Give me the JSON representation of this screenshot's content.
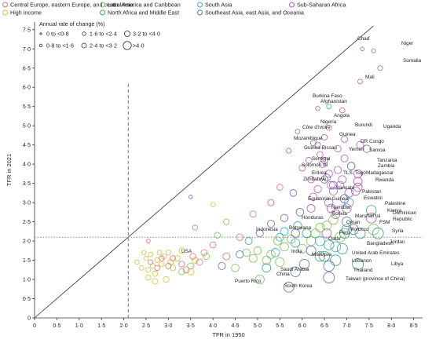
{
  "chart_data": {
    "type": "scatter",
    "xlabel": "TFR in 1950",
    "ylabel": "TFR in 2021",
    "xlim": [
      0,
      8.7
    ],
    "ylim": [
      0,
      7.7
    ],
    "x_ticks": [
      "0",
      "0·5",
      "1·0",
      "1·5",
      "2·0",
      "2·5",
      "3·0",
      "3·5",
      "4·0",
      "4·5",
      "5·0",
      "5·5",
      "6·0",
      "6·5",
      "7·0",
      "7·5",
      "8·0",
      "8·5"
    ],
    "y_ticks": [
      "0",
      "0·5",
      "1·0",
      "1·5",
      "2·0",
      "2·5",
      "3·0",
      "3·5",
      "4·0",
      "4·5",
      "5·0",
      "5·5",
      "6·0",
      "6·5",
      "7·0",
      "7·5"
    ],
    "reference_lines": [
      {
        "kind": "diagonal",
        "from": [
          0,
          0
        ],
        "to": [
          7.6,
          7.6
        ]
      },
      {
        "kind": "vertical-dashed",
        "x": 2.1
      },
      {
        "kind": "horizontal-dotted",
        "y": 2.1
      }
    ],
    "legend": {
      "regions": [
        {
          "name": "Central Europe, eastern Europe, and central Asia",
          "color": "#e8717d"
        },
        {
          "name": "High income",
          "color": "#d4c43c"
        },
        {
          "name": "Latin America and Caribbean",
          "color": "#7cc55a"
        },
        {
          "name": "North Africa and Middle East",
          "color": "#3aa37a"
        },
        {
          "name": "South Asia",
          "color": "#35b3c8"
        },
        {
          "name": "Southeast Asia, east Asia, and Oceania",
          "color": "#5a6fc0"
        },
        {
          "name": "Sub-Saharan Africa",
          "color": "#b060b8"
        }
      ],
      "size_title": "Annual rate of change (%)",
      "size_bins": [
        "0 to <0·8",
        "1·6 to <2·4",
        "3·2 to <4·0",
        "0·8 to <1·6",
        "2·4 to <3·2",
        ">4·0"
      ]
    },
    "labelled_points": [
      {
        "name": "Chad",
        "x": 7.35,
        "y": 7.0,
        "region": "Sub-Saharan Africa"
      },
      {
        "name": "Niger",
        "x": 7.6,
        "y": 6.95,
        "region": "Sub-Saharan Africa"
      },
      {
        "name": "Somalia",
        "x": 7.75,
        "y": 6.5,
        "region": "Sub-Saharan Africa"
      },
      {
        "name": "Mali",
        "x": 7.3,
        "y": 6.15,
        "region": "Sub-Saharan Africa"
      },
      {
        "name": "Burkina Faso",
        "x": 6.35,
        "y": 5.45,
        "region": "Sub-Saharan Africa"
      },
      {
        "name": "Afghanistan",
        "x": 6.6,
        "y": 5.5,
        "region": "South Asia"
      },
      {
        "name": "Angola",
        "x": 6.6,
        "y": 4.95,
        "region": "Sub-Saharan Africa"
      },
      {
        "name": "Nigeria",
        "x": 6.5,
        "y": 4.7,
        "region": "Sub-Saharan Africa"
      },
      {
        "name": "Burundi",
        "x": 6.95,
        "y": 4.65,
        "region": "Sub-Saharan Africa"
      },
      {
        "name": "Côte d'Ivoire",
        "x": 6.35,
        "y": 4.5,
        "region": "Sub-Saharan Africa"
      },
      {
        "name": "Uganda",
        "x": 7.3,
        "y": 4.5,
        "region": "Sub-Saharan Africa"
      },
      {
        "name": "Guinea",
        "x": 6.8,
        "y": 4.4,
        "region": "Sub-Saharan Africa"
      },
      {
        "name": "Mozambique",
        "x": 6.4,
        "y": 4.25,
        "region": "Sub-Saharan Africa"
      },
      {
        "name": "DR Congo",
        "x": 6.95,
        "y": 4.15,
        "region": "Sub-Saharan Africa"
      },
      {
        "name": "Guinea-Bissau",
        "x": 6.45,
        "y": 4.0,
        "region": "Sub-Saharan Africa"
      },
      {
        "name": "Yemen",
        "x": 7.1,
        "y": 3.95,
        "region": "North Africa and Middle East"
      },
      {
        "name": "Samoa",
        "x": 7.1,
        "y": 3.95,
        "region": "Southeast Asia, east Asia, and Oceania"
      },
      {
        "name": "Senegal",
        "x": 6.6,
        "y": 3.75,
        "region": "Sub-Saharan Africa"
      },
      {
        "name": "Tanzania",
        "x": 7.25,
        "y": 3.75,
        "region": "Sub-Saharan Africa"
      },
      {
        "name": "Solomon Isl",
        "x": 6.5,
        "y": 3.6,
        "region": "Southeast Asia, east Asia, and Oceania"
      },
      {
        "name": "Zambia",
        "x": 7.25,
        "y": 3.55,
        "region": "Sub-Saharan Africa"
      },
      {
        "name": "Eritrea",
        "x": 6.65,
        "y": 3.45,
        "region": "Sub-Saharan Africa"
      },
      {
        "name": "TLS",
        "x": 6.7,
        "y": 3.45,
        "region": "Southeast Asia, east Asia, and Oceania"
      },
      {
        "name": "Togo",
        "x": 6.85,
        "y": 3.45,
        "region": "Sub-Saharan Africa"
      },
      {
        "name": "Madagascar",
        "x": 7.25,
        "y": 3.4,
        "region": "Sub-Saharan Africa"
      },
      {
        "name": "Zimbabwe",
        "x": 6.7,
        "y": 3.3,
        "region": "Sub-Saharan Africa"
      },
      {
        "name": "Rwanda",
        "x": 7.2,
        "y": 3.3,
        "region": "Sub-Saharan Africa"
      },
      {
        "name": "Vanuatu",
        "x": 6.95,
        "y": 3.1,
        "region": "Southeast Asia, east Asia, and Oceania"
      },
      {
        "name": "Pakistan",
        "x": 7.05,
        "y": 3.0,
        "region": "South Asia"
      },
      {
        "name": "Equatorial Guinea",
        "x": 6.65,
        "y": 2.85,
        "region": "Sub-Saharan Africa"
      },
      {
        "name": "Eswatini",
        "x": 7.0,
        "y": 2.85,
        "region": "Sub-Saharan Africa"
      },
      {
        "name": "Palestine",
        "x": 7.55,
        "y": 2.8,
        "region": "North Africa and Middle East"
      },
      {
        "name": "Namibia",
        "x": 6.75,
        "y": 2.7,
        "region": "Sub-Saharan Africa"
      },
      {
        "name": "Kenya",
        "x": 7.55,
        "y": 2.6,
        "region": "Sub-Saharan Africa"
      },
      {
        "name": "Bolivia",
        "x": 6.7,
        "y": 2.55,
        "region": "Latin America and Caribbean"
      },
      {
        "name": "Marshall Isl",
        "x": 7.0,
        "y": 2.5,
        "region": "Southeast Asia, east Asia, and Oceania"
      },
      {
        "name": "Dominican Republic",
        "x": 7.6,
        "y": 2.3,
        "region": "Latin America and Caribbean"
      },
      {
        "name": "Honduras",
        "x": 6.55,
        "y": 2.4,
        "region": "Latin America and Caribbean"
      },
      {
        "name": "Oman",
        "x": 7.0,
        "y": 2.3,
        "region": "North Africa and Middle East"
      },
      {
        "name": "FSM",
        "x": 7.15,
        "y": 2.3,
        "region": "Southeast Asia, east Asia, and Oceania"
      },
      {
        "name": "Indonesia",
        "x": 5.85,
        "y": 2.2,
        "region": "Southeast Asia, east Asia, and Oceania"
      },
      {
        "name": "Botswana",
        "x": 6.55,
        "y": 2.2,
        "region": "Sub-Saharan Africa"
      },
      {
        "name": "Morocco",
        "x": 6.95,
        "y": 2.2,
        "region": "North Africa and Middle East"
      },
      {
        "name": "Syria",
        "x": 7.3,
        "y": 2.2,
        "region": "North Africa and Middle East"
      },
      {
        "name": "Peru",
        "x": 6.85,
        "y": 2.1,
        "region": "Latin America and Caribbean"
      },
      {
        "name": "Jordan",
        "x": 7.7,
        "y": 2.2,
        "region": "North Africa and Middle East"
      },
      {
        "name": "Qatar",
        "x": 6.6,
        "y": 1.9,
        "region": "North Africa and Middle East"
      },
      {
        "name": "Bangladesh",
        "x": 6.75,
        "y": 1.85,
        "region": "South Asia"
      },
      {
        "name": "India",
        "x": 5.85,
        "y": 1.95,
        "region": "South Asia"
      },
      {
        "name": "United Arab Emirates",
        "x": 6.9,
        "y": 1.8,
        "region": "North Africa and Middle East"
      },
      {
        "name": "Malaysia",
        "x": 6.2,
        "y": 1.75,
        "region": "Southeast Asia, east Asia, and Oceania"
      },
      {
        "name": "Lebanon",
        "x": 6.75,
        "y": 1.5,
        "region": "North Africa and Middle East"
      },
      {
        "name": "Libya",
        "x": 7.25,
        "y": 1.4,
        "region": "North Africa and Middle East"
      },
      {
        "name": "Saudi Arabia",
        "x": 6.5,
        "y": 1.6,
        "region": "North Africa and Middle East"
      },
      {
        "name": "Thailand",
        "x": 6.6,
        "y": 1.35,
        "region": "Southeast Asia, east Asia, and Oceania"
      },
      {
        "name": "China",
        "x": 5.85,
        "y": 1.2,
        "region": "Southeast Asia, east Asia, and Oceania"
      },
      {
        "name": "Puerto Rico",
        "x": 5.05,
        "y": 1.0,
        "region": "Latin America and Caribbean"
      },
      {
        "name": "Taiwan (province of China)",
        "x": 6.6,
        "y": 1.05,
        "region": "Southeast Asia, east Asia, and Oceania"
      },
      {
        "name": "South Korea",
        "x": 5.7,
        "y": 0.8,
        "region": "Southeast Asia, east Asia, and Oceania"
      },
      {
        "name": "USA",
        "x": 3.0,
        "y": 1.7,
        "region": "High income"
      }
    ],
    "other_points": [
      {
        "x": 2.3,
        "y": 1.45,
        "region": "High income"
      },
      {
        "x": 2.4,
        "y": 1.3,
        "region": "High income"
      },
      {
        "x": 2.5,
        "y": 1.55,
        "region": "High income"
      },
      {
        "x": 2.55,
        "y": 1.25,
        "region": "High income"
      },
      {
        "x": 2.6,
        "y": 1.65,
        "region": "High income"
      },
      {
        "x": 2.65,
        "y": 1.35,
        "region": "High income"
      },
      {
        "x": 2.7,
        "y": 1.15,
        "region": "High income"
      },
      {
        "x": 2.75,
        "y": 1.5,
        "region": "High income"
      },
      {
        "x": 2.8,
        "y": 1.7,
        "region": "High income"
      },
      {
        "x": 2.85,
        "y": 1.4,
        "region": "High income"
      },
      {
        "x": 2.9,
        "y": 1.6,
        "region": "High income"
      },
      {
        "x": 3.05,
        "y": 1.45,
        "region": "High income"
      },
      {
        "x": 3.1,
        "y": 1.3,
        "region": "High income"
      },
      {
        "x": 3.2,
        "y": 1.55,
        "region": "High income"
      },
      {
        "x": 3.3,
        "y": 1.75,
        "region": "High income"
      },
      {
        "x": 2.55,
        "y": 1.05,
        "region": "High income"
      },
      {
        "x": 2.95,
        "y": 1.0,
        "region": "High income"
      },
      {
        "x": 3.5,
        "y": 1.2,
        "region": "High income"
      },
      {
        "x": 3.6,
        "y": 1.5,
        "region": "High income"
      },
      {
        "x": 2.7,
        "y": 0.95,
        "region": "High income"
      },
      {
        "x": 2.45,
        "y": 1.7,
        "region": "High income"
      },
      {
        "x": 4.0,
        "y": 2.95,
        "region": "High income"
      },
      {
        "x": 2.55,
        "y": 2.0,
        "region": "Central Europe, eastern Europe, and central Asia"
      },
      {
        "x": 2.6,
        "y": 1.45,
        "region": "Central Europe, eastern Europe, and central Asia"
      },
      {
        "x": 2.75,
        "y": 1.3,
        "region": "Central Europe, eastern Europe, and central Asia"
      },
      {
        "x": 2.85,
        "y": 1.55,
        "region": "Central Europe, eastern Europe, and central Asia"
      },
      {
        "x": 3.0,
        "y": 1.35,
        "region": "Central Europe, eastern Europe, and central Asia"
      },
      {
        "x": 3.1,
        "y": 1.55,
        "region": "Central Europe, eastern Europe, and central Asia"
      },
      {
        "x": 3.3,
        "y": 1.4,
        "region": "Central Europe, eastern Europe, and central Asia"
      },
      {
        "x": 3.4,
        "y": 1.25,
        "region": "Central Europe, eastern Europe, and central Asia"
      },
      {
        "x": 3.55,
        "y": 1.6,
        "region": "Central Europe, eastern Europe, and central Asia"
      },
      {
        "x": 3.7,
        "y": 1.45,
        "region": "Central Europe, eastern Europe, and central Asia"
      },
      {
        "x": 3.8,
        "y": 1.7,
        "region": "Central Europe, eastern Europe, and central Asia"
      },
      {
        "x": 4.0,
        "y": 1.9,
        "region": "Central Europe, eastern Europe, and central Asia"
      },
      {
        "x": 4.3,
        "y": 1.6,
        "region": "Central Europe, eastern Europe, and central Asia"
      },
      {
        "x": 4.6,
        "y": 2.1,
        "region": "Central Europe, eastern Europe, and central Asia"
      },
      {
        "x": 3.6,
        "y": 2.35,
        "region": "Central Europe, eastern Europe, and central Asia"
      },
      {
        "x": 4.9,
        "y": 2.7,
        "region": "Central Europe, eastern Europe, and central Asia"
      },
      {
        "x": 5.5,
        "y": 3.4,
        "region": "Central Europe, eastern Europe, and central Asia"
      },
      {
        "x": 3.3,
        "y": 1.2,
        "region": "Latin America and Caribbean"
      },
      {
        "x": 3.5,
        "y": 1.35,
        "region": "Latin America and Caribbean"
      },
      {
        "x": 3.85,
        "y": 1.6,
        "region": "Latin America and Caribbean"
      },
      {
        "x": 4.1,
        "y": 2.15,
        "region": "Latin America and Caribbean"
      },
      {
        "x": 4.5,
        "y": 1.3,
        "region": "Latin America and Caribbean"
      },
      {
        "x": 4.75,
        "y": 1.7,
        "region": "Latin America and Caribbean"
      },
      {
        "x": 4.9,
        "y": 1.55,
        "region": "Latin America and Caribbean"
      },
      {
        "x": 5.0,
        "y": 1.75,
        "region": "Latin America and Caribbean"
      },
      {
        "x": 5.2,
        "y": 1.5,
        "region": "Latin America and Caribbean"
      },
      {
        "x": 5.3,
        "y": 1.65,
        "region": "Latin America and Caribbean"
      },
      {
        "x": 5.45,
        "y": 2.0,
        "region": "Latin America and Caribbean"
      },
      {
        "x": 5.6,
        "y": 1.85,
        "region": "Latin America and Caribbean"
      },
      {
        "x": 5.75,
        "y": 2.05,
        "region": "Latin America and Caribbean"
      },
      {
        "x": 6.0,
        "y": 1.8,
        "region": "Latin America and Caribbean"
      },
      {
        "x": 6.2,
        "y": 2.0,
        "region": "Latin America and Caribbean"
      },
      {
        "x": 6.3,
        "y": 2.2,
        "region": "Latin America and Caribbean"
      },
      {
        "x": 5.5,
        "y": 1.45,
        "region": "Latin America and Caribbean"
      },
      {
        "x": 4.3,
        "y": 2.5,
        "region": "Latin America and Caribbean"
      },
      {
        "x": 6.4,
        "y": 2.35,
        "region": "Latin America and Caribbean"
      },
      {
        "x": 4.8,
        "y": 2.0,
        "region": "North Africa and Middle East"
      },
      {
        "x": 5.9,
        "y": 2.4,
        "region": "North Africa and Middle East"
      },
      {
        "x": 6.1,
        "y": 2.2,
        "region": "North Africa and Middle East"
      },
      {
        "x": 6.4,
        "y": 1.6,
        "region": "North Africa and Middle East"
      },
      {
        "x": 5.2,
        "y": 1.3,
        "region": "North Africa and Middle East"
      },
      {
        "x": 5.5,
        "y": 2.1,
        "region": "South Asia"
      },
      {
        "x": 6.4,
        "y": 2.0,
        "region": "South Asia"
      },
      {
        "x": 5.6,
        "y": 2.25,
        "region": "South Asia"
      },
      {
        "x": 5.4,
        "y": 1.7,
        "region": "South Asia"
      },
      {
        "x": 3.5,
        "y": 3.15,
        "region": "Southeast Asia, east Asia, and Oceania"
      },
      {
        "x": 4.2,
        "y": 1.35,
        "region": "Southeast Asia, east Asia, and Oceania"
      },
      {
        "x": 4.6,
        "y": 1.65,
        "region": "Southeast Asia, east Asia, and Oceania"
      },
      {
        "x": 5.05,
        "y": 2.2,
        "region": "Southeast Asia, east Asia, and Oceania"
      },
      {
        "x": 5.3,
        "y": 2.45,
        "region": "Southeast Asia, east Asia, and Oceania"
      },
      {
        "x": 5.6,
        "y": 2.6,
        "region": "Southeast Asia, east Asia, and Oceania"
      },
      {
        "x": 5.95,
        "y": 2.75,
        "region": "Southeast Asia, east Asia, and Oceania"
      },
      {
        "x": 6.05,
        "y": 1.4,
        "region": "Southeast Asia, east Asia, and Oceania"
      },
      {
        "x": 5.8,
        "y": 3.25,
        "region": "Southeast Asia, east Asia, and Oceania"
      },
      {
        "x": 5.7,
        "y": 4.35,
        "region": "Sub-Saharan Africa"
      },
      {
        "x": 6.0,
        "y": 3.9,
        "region": "Sub-Saharan Africa"
      },
      {
        "x": 6.2,
        "y": 3.6,
        "region": "Sub-Saharan Africa"
      },
      {
        "x": 6.15,
        "y": 4.1,
        "region": "Sub-Saharan Africa"
      },
      {
        "x": 6.25,
        "y": 4.55,
        "region": "Sub-Saharan Africa"
      },
      {
        "x": 5.9,
        "y": 4.85,
        "region": "Sub-Saharan Africa"
      },
      {
        "x": 6.9,
        "y": 5.4,
        "region": "Sub-Saharan Africa"
      },
      {
        "x": 6.5,
        "y": 4.1,
        "region": "Sub-Saharan Africa"
      },
      {
        "x": 6.55,
        "y": 3.65,
        "region": "Sub-Saharan Africa"
      },
      {
        "x": 6.35,
        "y": 3.35,
        "region": "Sub-Saharan Africa"
      },
      {
        "x": 6.8,
        "y": 3.85,
        "region": "Sub-Saharan Africa"
      },
      {
        "x": 6.9,
        "y": 3.6,
        "region": "Sub-Saharan Africa"
      },
      {
        "x": 6.25,
        "y": 3.15,
        "region": "Sub-Saharan Africa"
      },
      {
        "x": 6.6,
        "y": 3.0,
        "region": "Sub-Saharan Africa"
      },
      {
        "x": 7.05,
        "y": 3.25,
        "region": "Sub-Saharan Africa"
      },
      {
        "x": 6.2,
        "y": 2.85,
        "region": "Sub-Saharan Africa"
      },
      {
        "x": 7.45,
        "y": 4.4,
        "region": "Sub-Saharan Africa"
      },
      {
        "x": 5.3,
        "y": 3.0,
        "region": "Sub-Saharan Africa"
      }
    ]
  }
}
